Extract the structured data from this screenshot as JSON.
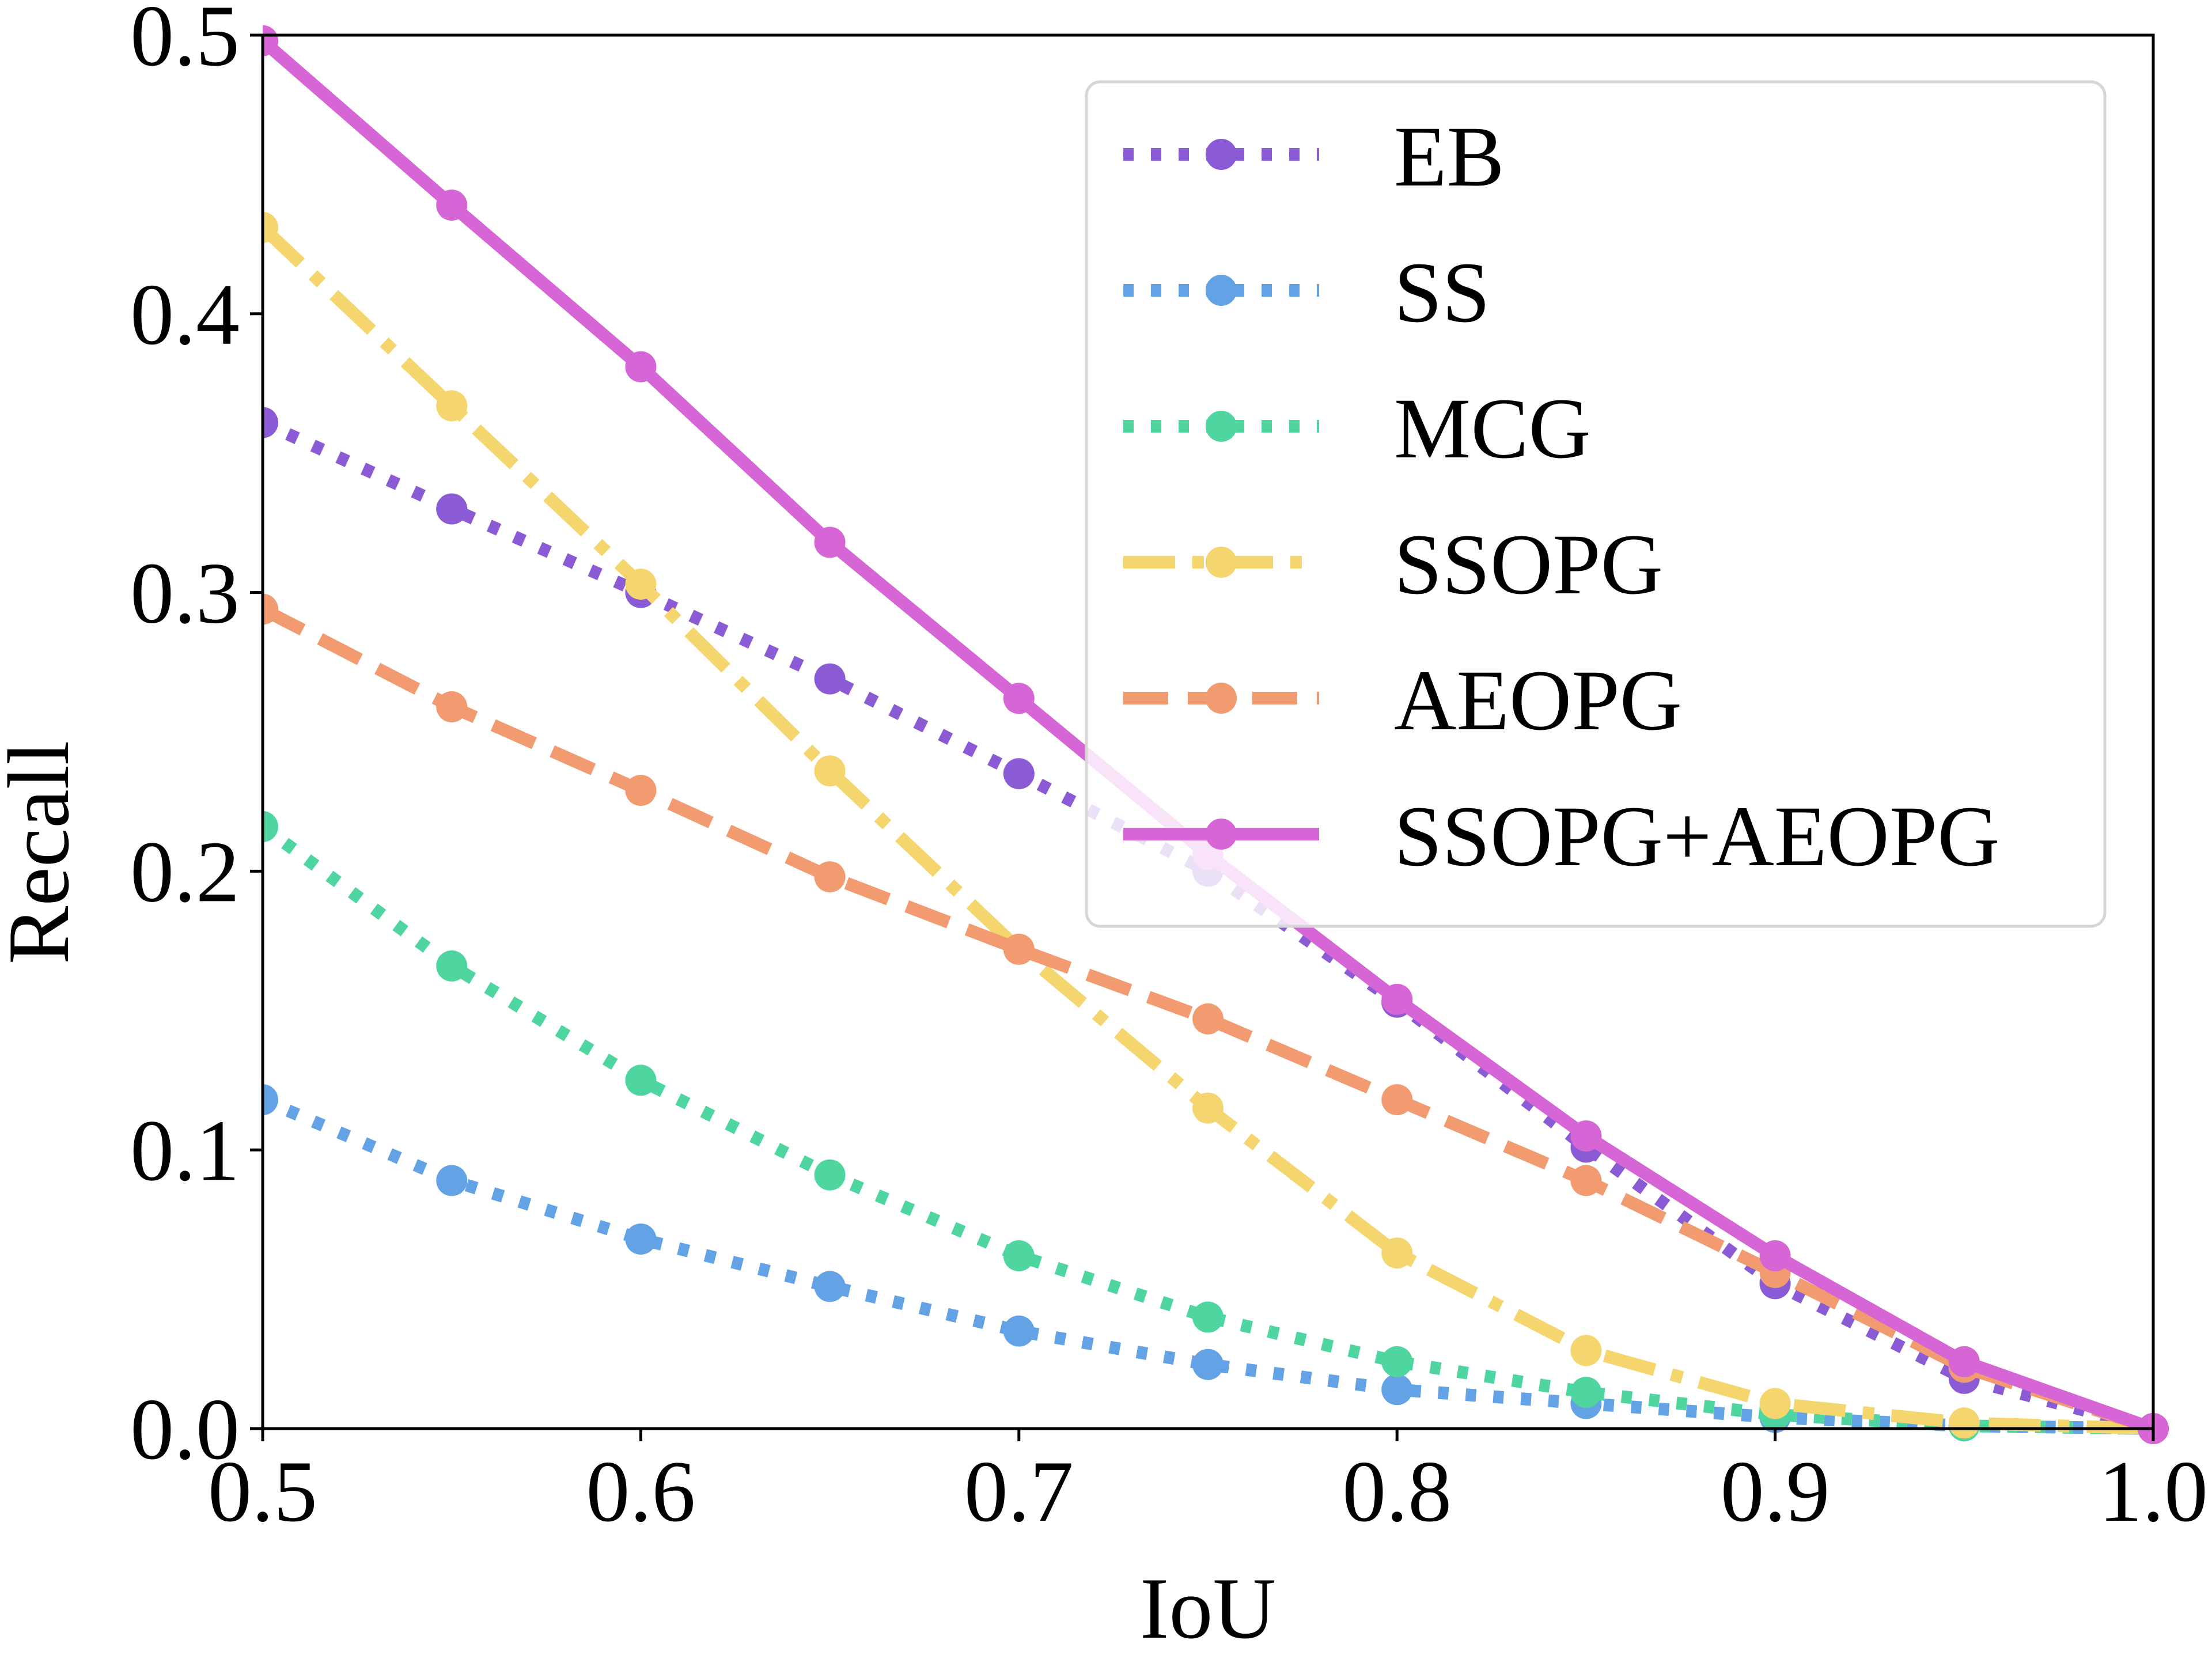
{
  "chart_data": {
    "type": "line",
    "title": "",
    "xlabel": "IoU",
    "ylabel": "Recall",
    "xlim": [
      0.5,
      1.0
    ],
    "ylim": [
      0.0,
      0.5
    ],
    "grid": false,
    "legend_position": "top-right",
    "x": [
      0.5,
      0.55,
      0.6,
      0.65,
      0.7,
      0.75,
      0.8,
      0.85,
      0.9,
      0.95,
      1.0
    ],
    "xticks": [
      "0.5",
      "0.6",
      "0.7",
      "0.8",
      "0.9",
      "1.0"
    ],
    "yticks": [
      "0.0",
      "0.1",
      "0.2",
      "0.3",
      "0.4",
      "0.5"
    ],
    "series": [
      {
        "name": "EB",
        "color": "#8a5bd4",
        "dash": "dotted",
        "values": [
          0.361,
          0.33,
          0.3,
          0.269,
          0.235,
          0.2,
          0.153,
          0.101,
          0.052,
          0.018,
          0.0
        ]
      },
      {
        "name": "SS",
        "color": "#64a2e6",
        "dash": "dotted",
        "values": [
          0.118,
          0.089,
          0.068,
          0.051,
          0.035,
          0.023,
          0.014,
          0.009,
          0.004,
          0.001,
          0.0
        ]
      },
      {
        "name": "MCG",
        "color": "#4fd6a0",
        "dash": "dotted",
        "values": [
          0.216,
          0.166,
          0.125,
          0.091,
          0.062,
          0.04,
          0.024,
          0.013,
          0.005,
          0.001,
          0.0
        ]
      },
      {
        "name": "SSOPG",
        "color": "#f5d56e",
        "dash": "dashdot",
        "values": [
          0.431,
          0.367,
          0.303,
          0.236,
          0.172,
          0.115,
          0.063,
          0.028,
          0.009,
          0.002,
          0.0
        ]
      },
      {
        "name": "AEOPG",
        "color": "#f29b70",
        "dash": "dashed",
        "values": [
          0.294,
          0.259,
          0.229,
          0.198,
          0.172,
          0.147,
          0.118,
          0.089,
          0.056,
          0.022,
          0.0
        ]
      },
      {
        "name": "SSOPG+AEOPG",
        "color": "#d665d6",
        "dash": "solid",
        "values": [
          0.498,
          0.439,
          0.381,
          0.318,
          0.262,
          0.206,
          0.154,
          0.105,
          0.062,
          0.024,
          0.0
        ]
      }
    ]
  }
}
